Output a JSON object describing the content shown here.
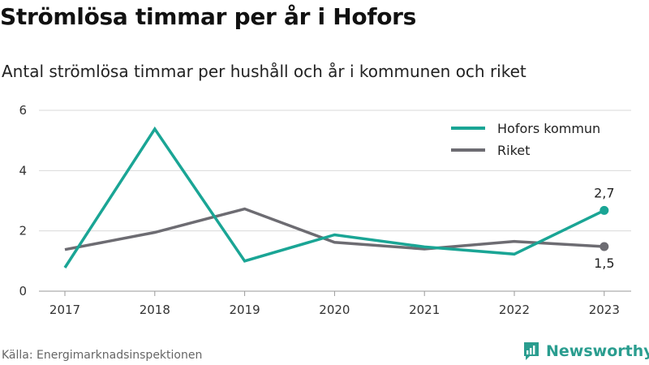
{
  "header": {
    "title": "Strömlösa timmar per år i Hofors",
    "subtitle": "Antal strömlösa timmar per hushåll och år i kommunen och riket"
  },
  "footer": {
    "source": "Källa: Energimarknadsinspektionen",
    "brand": "Newsworthy"
  },
  "colors": {
    "hofors": "#1aa595",
    "riket": "#6d6c72",
    "grid": "#d9d9d9",
    "brand": "#2a9d8f"
  },
  "chart_data": {
    "type": "line",
    "categories": [
      "2017",
      "2018",
      "2019",
      "2020",
      "2021",
      "2022",
      "2023"
    ],
    "series": [
      {
        "name": "Hofors kommun",
        "values": [
          0.78,
          5.38,
          1.0,
          1.87,
          1.47,
          1.23,
          2.68
        ]
      },
      {
        "name": "Riket",
        "values": [
          1.38,
          1.95,
          2.73,
          1.62,
          1.4,
          1.65,
          1.48
        ]
      }
    ],
    "ylim": [
      0,
      6
    ],
    "yticks": [
      "0",
      "2",
      "4",
      "6"
    ],
    "xlabel": "",
    "ylabel": "",
    "grid": true,
    "legend": "top-right",
    "end_labels": [
      "2,7",
      "1,5"
    ]
  }
}
